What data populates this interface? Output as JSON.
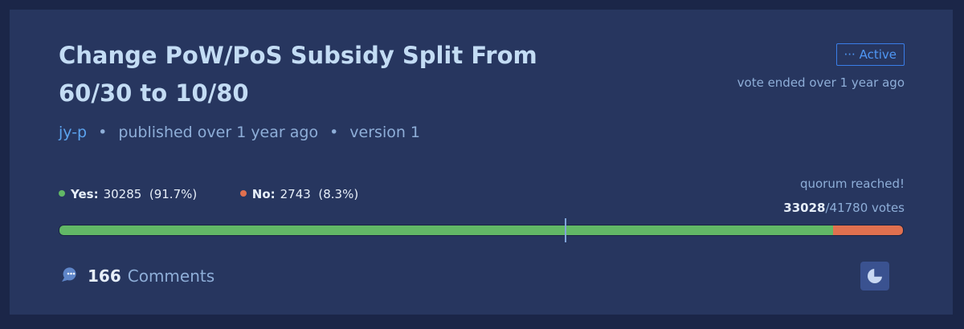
{
  "proposal": {
    "title": "Change PoW/PoS Subsidy Split From 60/30 to 10/80",
    "status": "Active",
    "vote_status": "vote ended over 1 year ago",
    "author": "jy-p",
    "published": "published over 1 year ago",
    "version": "version 1",
    "yes": {
      "label": "Yes:",
      "votes": 30285,
      "percent_label": "(91.7%)",
      "color": "#62b866"
    },
    "no": {
      "label": "No:",
      "votes": 2743,
      "percent_label": "(8.3%)",
      "color": "#e0704f"
    },
    "quorum_status": "quorum reached!",
    "votes_cast": 33028,
    "votes_total_label": "/41780 votes",
    "pass_threshold_percent": 60,
    "comments_count": 166,
    "comments_label": "Comments"
  }
}
